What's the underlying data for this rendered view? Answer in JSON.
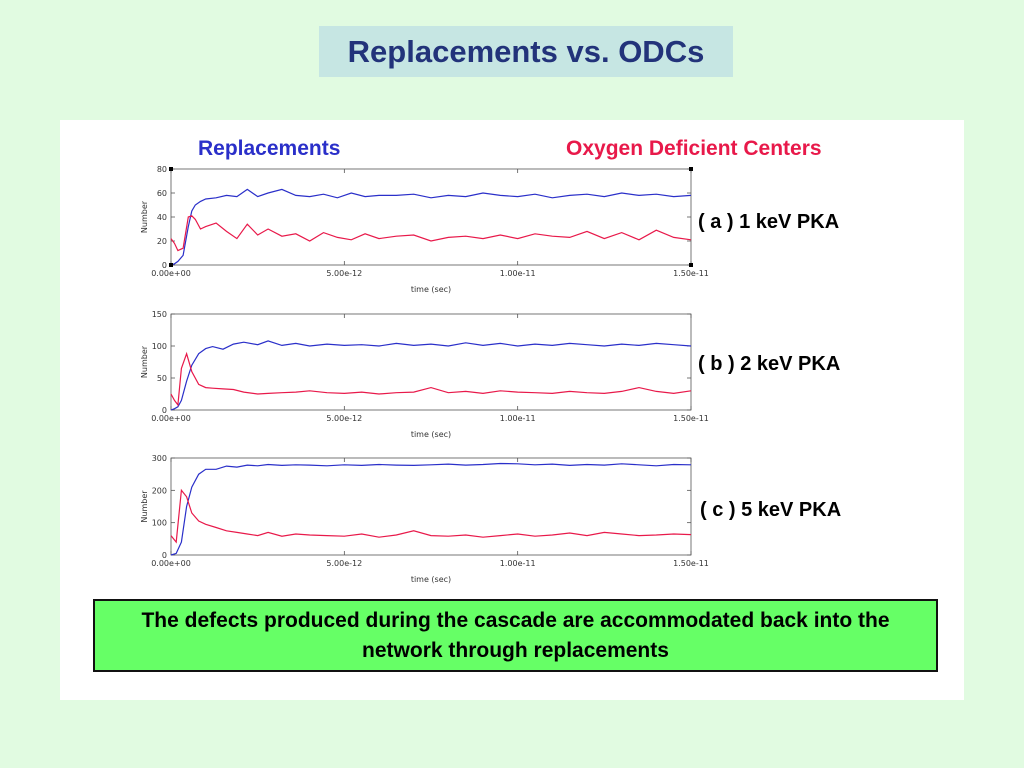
{
  "title": "Replacements vs. ODCs",
  "legend": {
    "replacements": "Replacements",
    "odc": "Oxygen Deficient Centers"
  },
  "colors": {
    "replacements": "#2a2fc9",
    "odc": "#e8194a"
  },
  "note": "The defects produced during the cascade are accommodated back into the network through replacements",
  "chart_data": [
    {
      "type": "line",
      "label": "( a ) 1 keV PKA",
      "xlabel": "time (sec)",
      "ylabel": "Number",
      "xlim": [
        0,
        1.5e-11
      ],
      "ylim": [
        0,
        80
      ],
      "xticks": [
        "0.00e+00",
        "5.00e-12",
        "1.00e-11",
        "1.50e-11"
      ],
      "yticks": [
        "0",
        "20",
        "40",
        "60",
        "80"
      ],
      "series": [
        {
          "name": "Replacements",
          "x": [
            0,
            1e-13,
            2e-13,
            3.5e-13,
            5e-13,
            6e-13,
            7e-13,
            8.5e-13,
            1e-12,
            1.3e-12,
            1.6e-12,
            1.9e-12,
            2.2e-12,
            2.5e-12,
            2.8e-12,
            3.2e-12,
            3.6e-12,
            4e-12,
            4.4e-12,
            4.8e-12,
            5.2e-12,
            5.6e-12,
            6e-12,
            6.5e-12,
            7e-12,
            7.5e-12,
            8e-12,
            8.5e-12,
            9e-12,
            9.5e-12,
            1e-11,
            1.05e-11,
            1.1e-11,
            1.15e-11,
            1.2e-11,
            1.25e-11,
            1.3e-11,
            1.35e-11,
            1.4e-11,
            1.45e-11,
            1.5e-11
          ],
          "values": [
            0,
            1,
            3,
            8,
            32,
            45,
            50,
            53,
            55,
            56,
            58,
            57,
            63,
            57,
            60,
            63,
            58,
            57,
            59,
            56,
            60,
            57,
            58,
            58,
            59,
            56,
            58,
            57,
            60,
            58,
            57,
            59,
            56,
            58,
            59,
            57,
            60,
            58,
            59,
            57,
            58
          ]
        },
        {
          "name": "Oxygen Deficient Centers",
          "x": [
            0,
            1e-13,
            2e-13,
            3.5e-13,
            5e-13,
            6e-13,
            7e-13,
            8.5e-13,
            1e-12,
            1.3e-12,
            1.6e-12,
            1.9e-12,
            2.2e-12,
            2.5e-12,
            2.8e-12,
            3.2e-12,
            3.6e-12,
            4e-12,
            4.4e-12,
            4.8e-12,
            5.2e-12,
            5.6e-12,
            6e-12,
            6.5e-12,
            7e-12,
            7.5e-12,
            8e-12,
            8.5e-12,
            9e-12,
            9.5e-12,
            1e-11,
            1.05e-11,
            1.1e-11,
            1.15e-11,
            1.2e-11,
            1.25e-11,
            1.3e-11,
            1.35e-11,
            1.4e-11,
            1.45e-11,
            1.5e-11
          ],
          "values": [
            22,
            18,
            12,
            14,
            40,
            41,
            38,
            30,
            32,
            35,
            28,
            22,
            34,
            25,
            30,
            24,
            26,
            20,
            27,
            23,
            21,
            26,
            22,
            24,
            25,
            20,
            23,
            24,
            22,
            25,
            22,
            26,
            24,
            23,
            28,
            22,
            27,
            21,
            29,
            23,
            21
          ]
        }
      ]
    },
    {
      "type": "line",
      "label": "( b ) 2 keV PKA",
      "xlabel": "time (sec)",
      "ylabel": "Number",
      "xlim": [
        0,
        1.5e-11
      ],
      "ylim": [
        0,
        150
      ],
      "xticks": [
        "0.00e+00",
        "5.00e-12",
        "1.00e-11",
        "1.50e-11"
      ],
      "yticks": [
        "0",
        "50",
        "100",
        "150"
      ],
      "series": [
        {
          "name": "Replacements",
          "x": [
            0,
            1e-13,
            2e-13,
            3e-13,
            4.5e-13,
            6e-13,
            8e-13,
            1e-12,
            1.2e-12,
            1.5e-12,
            1.8e-12,
            2.1e-12,
            2.5e-12,
            2.8e-12,
            3.2e-12,
            3.6e-12,
            4e-12,
            4.5e-12,
            5e-12,
            5.5e-12,
            6e-12,
            6.5e-12,
            7e-12,
            7.5e-12,
            8e-12,
            8.5e-12,
            9e-12,
            9.5e-12,
            1e-11,
            1.05e-11,
            1.1e-11,
            1.15e-11,
            1.2e-11,
            1.25e-11,
            1.3e-11,
            1.35e-11,
            1.4e-11,
            1.45e-11,
            1.5e-11
          ],
          "values": [
            0,
            2,
            5,
            15,
            45,
            70,
            88,
            96,
            99,
            95,
            103,
            106,
            102,
            108,
            101,
            104,
            100,
            103,
            101,
            102,
            100,
            104,
            101,
            103,
            100,
            105,
            101,
            104,
            100,
            103,
            101,
            104,
            102,
            100,
            103,
            101,
            104,
            102,
            100
          ]
        },
        {
          "name": "Oxygen Deficient Centers",
          "x": [
            0,
            1e-13,
            2e-13,
            3e-13,
            4.5e-13,
            6e-13,
            8e-13,
            1e-12,
            1.2e-12,
            1.5e-12,
            1.8e-12,
            2.1e-12,
            2.5e-12,
            2.8e-12,
            3.2e-12,
            3.6e-12,
            4e-12,
            4.5e-12,
            5e-12,
            5.5e-12,
            6e-12,
            6.5e-12,
            7e-12,
            7.5e-12,
            8e-12,
            8.5e-12,
            9e-12,
            9.5e-12,
            1e-11,
            1.05e-11,
            1.1e-11,
            1.15e-11,
            1.2e-11,
            1.25e-11,
            1.3e-11,
            1.35e-11,
            1.4e-11,
            1.45e-11,
            1.5e-11
          ],
          "values": [
            25,
            15,
            8,
            65,
            88,
            60,
            40,
            35,
            34,
            33,
            32,
            28,
            25,
            26,
            27,
            28,
            30,
            27,
            26,
            28,
            25,
            27,
            28,
            35,
            27,
            29,
            26,
            30,
            28,
            27,
            26,
            29,
            27,
            26,
            29,
            35,
            29,
            26,
            30
          ]
        }
      ]
    },
    {
      "type": "line",
      "label": "( c ) 5 keV PKA",
      "xlabel": "time (sec)",
      "ylabel": "Number",
      "xlim": [
        0,
        1.5e-11
      ],
      "ylim": [
        0,
        300
      ],
      "xticks": [
        "0.00e+00",
        "5.00e-12",
        "1.00e-11",
        "1.50e-11"
      ],
      "yticks": [
        "0",
        "100",
        "200",
        "300"
      ],
      "series": [
        {
          "name": "Replacements",
          "x": [
            0,
            1.5e-13,
            3e-13,
            4.5e-13,
            6e-13,
            8e-13,
            1e-12,
            1.3e-12,
            1.6e-12,
            1.9e-12,
            2.2e-12,
            2.5e-12,
            2.8e-12,
            3.2e-12,
            3.6e-12,
            4e-12,
            4.5e-12,
            5e-12,
            5.5e-12,
            6e-12,
            6.5e-12,
            7e-12,
            7.5e-12,
            8e-12,
            8.5e-12,
            9e-12,
            9.5e-12,
            1e-11,
            1.05e-11,
            1.1e-11,
            1.15e-11,
            1.2e-11,
            1.25e-11,
            1.3e-11,
            1.35e-11,
            1.4e-11,
            1.45e-11,
            1.5e-11
          ],
          "values": [
            0,
            5,
            40,
            150,
            210,
            250,
            265,
            265,
            275,
            272,
            278,
            276,
            280,
            277,
            279,
            278,
            276,
            279,
            277,
            280,
            278,
            277,
            279,
            281,
            278,
            280,
            283,
            282,
            279,
            281,
            277,
            280,
            278,
            282,
            279,
            276,
            280,
            279
          ]
        },
        {
          "name": "Oxygen Deficient Centers",
          "x": [
            0,
            1.5e-13,
            3e-13,
            4.5e-13,
            6e-13,
            8e-13,
            1e-12,
            1.3e-12,
            1.6e-12,
            1.9e-12,
            2.2e-12,
            2.5e-12,
            2.8e-12,
            3.2e-12,
            3.6e-12,
            4e-12,
            4.5e-12,
            5e-12,
            5.5e-12,
            6e-12,
            6.5e-12,
            7e-12,
            7.5e-12,
            8e-12,
            8.5e-12,
            9e-12,
            9.5e-12,
            1e-11,
            1.05e-11,
            1.1e-11,
            1.15e-11,
            1.2e-11,
            1.25e-11,
            1.3e-11,
            1.35e-11,
            1.4e-11,
            1.45e-11,
            1.5e-11
          ],
          "values": [
            60,
            40,
            200,
            180,
            130,
            105,
            95,
            85,
            75,
            70,
            65,
            60,
            70,
            58,
            65,
            62,
            60,
            58,
            65,
            55,
            62,
            75,
            60,
            58,
            62,
            55,
            60,
            65,
            58,
            62,
            68,
            60,
            70,
            65,
            60,
            62,
            65,
            63
          ]
        }
      ]
    }
  ]
}
